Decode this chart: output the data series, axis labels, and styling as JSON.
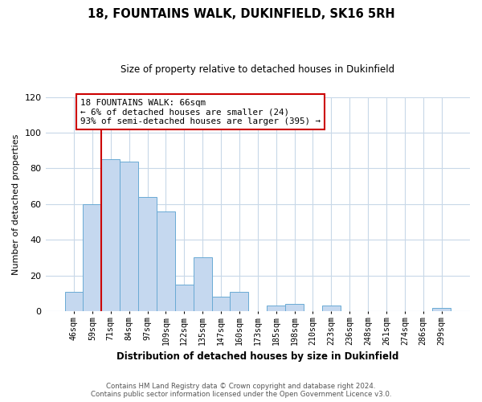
{
  "title": "18, FOUNTAINS WALK, DUKINFIELD, SK16 5RH",
  "subtitle": "Size of property relative to detached houses in Dukinfield",
  "xlabel": "Distribution of detached houses by size in Dukinfield",
  "ylabel": "Number of detached properties",
  "bar_labels": [
    "46sqm",
    "59sqm",
    "71sqm",
    "84sqm",
    "97sqm",
    "109sqm",
    "122sqm",
    "135sqm",
    "147sqm",
    "160sqm",
    "173sqm",
    "185sqm",
    "198sqm",
    "210sqm",
    "223sqm",
    "236sqm",
    "248sqm",
    "261sqm",
    "274sqm",
    "286sqm",
    "299sqm"
  ],
  "bar_values": [
    11,
    60,
    85,
    84,
    64,
    56,
    15,
    30,
    8,
    11,
    0,
    3,
    4,
    0,
    3,
    0,
    0,
    0,
    0,
    0,
    2
  ],
  "bar_color": "#c5d8ef",
  "bar_edge_color": "#6aaad4",
  "vline_color": "#cc0000",
  "annotation_text": "18 FOUNTAINS WALK: 66sqm\n← 6% of detached houses are smaller (24)\n93% of semi-detached houses are larger (395) →",
  "annotation_box_color": "#ffffff",
  "annotation_box_edge": "#cc0000",
  "ylim": [
    0,
    120
  ],
  "yticks": [
    0,
    20,
    40,
    60,
    80,
    100,
    120
  ],
  "footer_text": "Contains HM Land Registry data © Crown copyright and database right 2024.\nContains public sector information licensed under the Open Government Licence v3.0.",
  "bg_color": "#ffffff",
  "grid_color": "#c8d8e8"
}
